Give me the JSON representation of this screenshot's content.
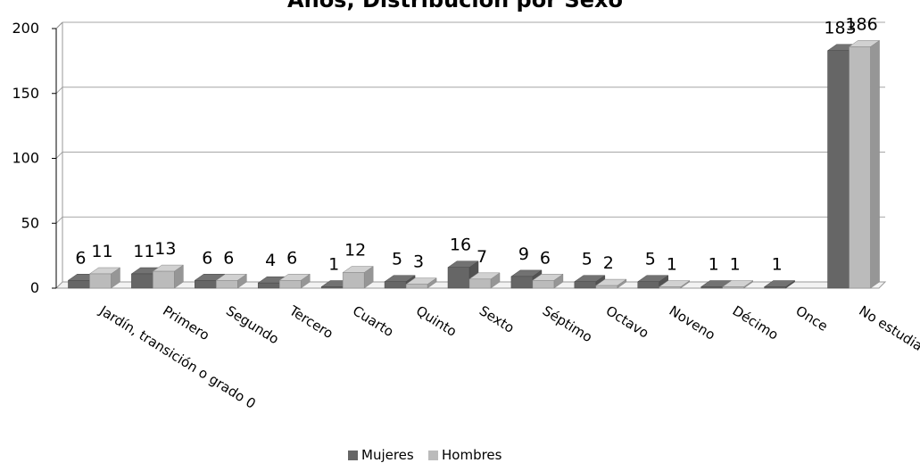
{
  "chart_data": {
    "type": "bar",
    "title": "Años, Distribución por Sexo",
    "categories": [
      "Jardín, transición o grado 0",
      "Primero",
      "Segundo",
      "Tercero",
      "Cuarto",
      "Quinto",
      "Sexto",
      "Séptimo",
      "Octavo",
      "Noveno",
      "Décimo",
      "Once",
      "No estudia"
    ],
    "series": [
      {
        "name": "Mujeres",
        "values": [
          6,
          11,
          6,
          4,
          1,
          5,
          16,
          9,
          5,
          5,
          1,
          1,
          183
        ],
        "labels": [
          "6",
          "11",
          "6",
          "4",
          "1",
          "5",
          "16",
          "9",
          "5",
          "5",
          "1",
          "1",
          "183"
        ],
        "color": "#666666"
      },
      {
        "name": "Hombres",
        "values": [
          11,
          13,
          6,
          6,
          12,
          3,
          7,
          6,
          2,
          1,
          1,
          0,
          186
        ],
        "labels": [
          "11",
          "13",
          "6",
          "6",
          "12",
          "3",
          "7",
          "6",
          "2",
          "1",
          "1",
          "",
          "186"
        ],
        "color": "#bbbbbb"
      }
    ],
    "ylim": [
      0,
      200
    ],
    "yticks": [
      "0",
      "50",
      "100",
      "150",
      "200"
    ],
    "grid": true,
    "legend": "bottom",
    "three_d": true
  }
}
